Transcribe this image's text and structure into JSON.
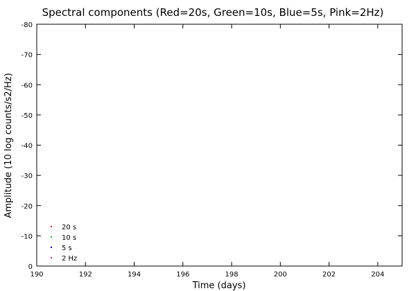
{
  "chart_data": {
    "type": "scatter",
    "title": "Spectral components (Red=20s, Green=10s, Blue=5s, Pink=2Hz)",
    "xlabel": "Time (days)",
    "ylabel": "Amplitude (10 log counts/s2/Hz)",
    "xlim": [
      190,
      205
    ],
    "ylim": [
      0,
      -80
    ],
    "x_ticks": [
      190,
      192,
      194,
      196,
      198,
      200,
      202,
      204
    ],
    "y_ticks": [
      -80,
      -70,
      -60,
      -50,
      -40,
      -30,
      -20,
      -10,
      0
    ],
    "grid": false,
    "legend_position": "bottom-left",
    "series": [
      {
        "name": "20 s",
        "color": "#ff0000",
        "x": [],
        "y": []
      },
      {
        "name": "10 s",
        "color": "#00cc00",
        "x": [],
        "y": []
      },
      {
        "name": "5 s",
        "color": "#0000ff",
        "x": [],
        "y": []
      },
      {
        "name": "2 Hz",
        "color": "#ff00ff",
        "x": [],
        "y": []
      }
    ]
  }
}
